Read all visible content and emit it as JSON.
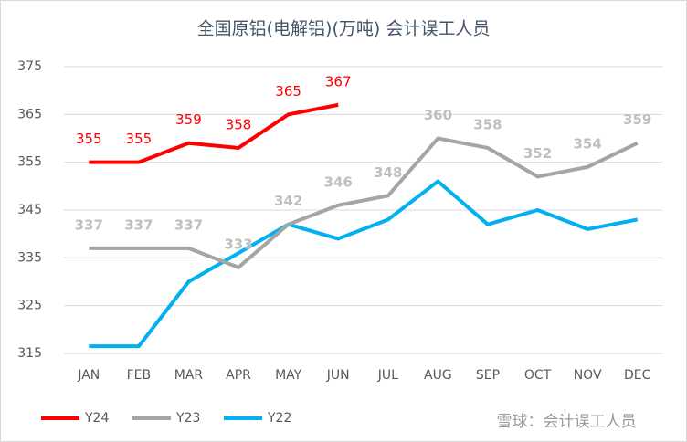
{
  "chart_data": {
    "type": "line",
    "title": "全国原铝(电解铝)(万吨) 会计误工人员",
    "categories": [
      "JAN",
      "FEB",
      "MAR",
      "APR",
      "MAY",
      "JUN",
      "JUL",
      "AUG",
      "SEP",
      "OCT",
      "NOV",
      "DEC"
    ],
    "series": [
      {
        "name": "Y24",
        "color": "#ff0000",
        "labels": true,
        "values": [
          355,
          355,
          359,
          358,
          365,
          367,
          null,
          null,
          null,
          null,
          null,
          null
        ]
      },
      {
        "name": "Y23",
        "color": "#a5a5a5",
        "labels": true,
        "values": [
          337,
          337,
          337,
          333,
          342,
          346,
          348,
          360,
          358,
          352,
          354,
          359
        ]
      },
      {
        "name": "Y22",
        "color": "#00b0f0",
        "labels": false,
        "values": [
          316.5,
          316.5,
          330,
          336,
          342,
          339,
          343,
          351,
          342,
          345,
          341,
          343
        ]
      }
    ],
    "ylim": [
      315,
      375
    ],
    "yticks": [
      315,
      325,
      335,
      345,
      355,
      365,
      375
    ],
    "grid": true,
    "legend": "bottom-left",
    "watermark": "雪球：会计误工人员"
  }
}
